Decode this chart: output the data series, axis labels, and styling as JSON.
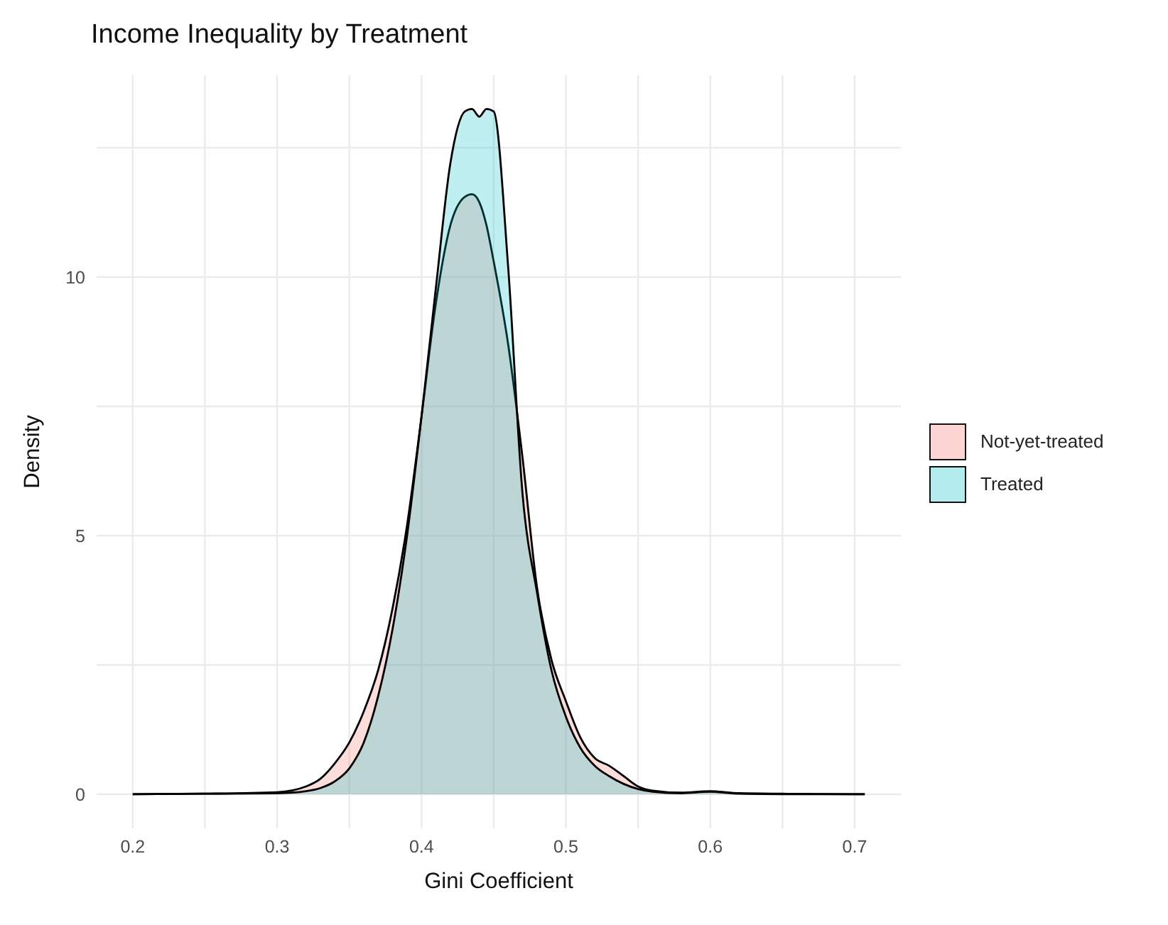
{
  "chart_data": {
    "type": "area",
    "title": "Income Inequality by Treatment",
    "xlabel": "Gini Coefficient",
    "ylabel": "Density",
    "x": [
      0.2,
      0.25,
      0.3,
      0.32,
      0.33,
      0.34,
      0.35,
      0.36,
      0.37,
      0.38,
      0.39,
      0.4,
      0.41,
      0.42,
      0.43,
      0.435,
      0.44,
      0.445,
      0.45,
      0.46,
      0.47,
      0.48,
      0.49,
      0.5,
      0.51,
      0.52,
      0.53,
      0.54,
      0.55,
      0.56,
      0.58,
      0.6,
      0.62,
      0.65,
      0.7,
      0.707
    ],
    "series": [
      {
        "name": "Not-yet-treated",
        "color": "#f8766d",
        "values": [
          0,
          0.01,
          0.04,
          0.15,
          0.3,
          0.6,
          1.0,
          1.6,
          2.4,
          3.6,
          5.2,
          7.3,
          9.5,
          11.0,
          11.55,
          11.6,
          11.45,
          11.0,
          10.3,
          8.7,
          6.5,
          4.0,
          2.6,
          1.8,
          1.1,
          0.7,
          0.55,
          0.35,
          0.15,
          0.07,
          0.03,
          0.06,
          0.02,
          0.01,
          0,
          0
        ]
      },
      {
        "name": "Treated",
        "color": "#00bfc4",
        "values": [
          0,
          0.01,
          0.02,
          0.06,
          0.12,
          0.25,
          0.5,
          1.0,
          1.9,
          3.2,
          5.0,
          7.3,
          9.8,
          12.2,
          13.2,
          13.25,
          13.1,
          13.25,
          13.2,
          10.2,
          5.8,
          3.9,
          2.4,
          1.5,
          0.9,
          0.55,
          0.35,
          0.2,
          0.1,
          0.05,
          0.02,
          0.05,
          0.01,
          0,
          0,
          0
        ]
      }
    ],
    "xlim": [
      0.175,
      0.732
    ],
    "xticks": [
      0.2,
      {
        "value": 0.25,
        "label": null
      },
      0.3,
      {
        "value": 0.35,
        "label": null
      },
      0.4,
      {
        "value": 0.45,
        "label": null
      },
      0.5,
      {
        "value": 0.55,
        "label": null
      },
      0.6,
      {
        "value": 0.65,
        "label": null
      },
      0.7
    ],
    "ylim": [
      -0.66,
      13.9
    ],
    "yticks": [
      0,
      {
        "value": 2.5,
        "label": null
      },
      5,
      {
        "value": 7.5,
        "label": null
      },
      10,
      {
        "value": 12.5,
        "label": null
      }
    ],
    "grid": true,
    "legend": "right",
    "line_style": "solid",
    "marker": "none"
  }
}
